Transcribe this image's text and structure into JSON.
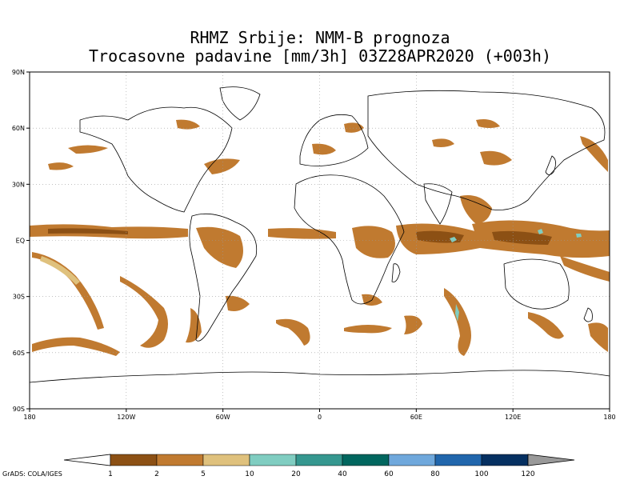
{
  "title": {
    "line1": "RHMZ Srbije: NMM-B prognoza",
    "line2": "Trocasovne padavine [mm/3h] 03Z28APR2020 (+003h)"
  },
  "axes": {
    "lat_labels": [
      "90N",
      "60N",
      "30N",
      "EQ",
      "30S",
      "60S",
      "90S"
    ],
    "lon_labels": [
      "180",
      "120W",
      "60W",
      "0",
      "60E",
      "120E",
      "180"
    ],
    "lat_range": [
      -90,
      90
    ],
    "lon_range": [
      -180,
      180
    ],
    "grid": "dotted"
  },
  "colorbar": {
    "thresholds": [
      "1",
      "2",
      "5",
      "10",
      "20",
      "40",
      "60",
      "80",
      "100",
      "120"
    ],
    "colors": [
      "#8c5014",
      "#c07a30",
      "#dfc17d",
      "#80cdc1",
      "#35978f",
      "#01665e",
      "#6fa8dc",
      "#2166ac",
      "#053061",
      "#999999"
    ],
    "low_color": "#ffffff"
  },
  "credit": "GrADS: COLA/IGES",
  "colors": {
    "land_outline": "#000000",
    "precip_light": "#c07a30",
    "precip_dark": "#8c5014",
    "precip_pale": "#dfc17d",
    "precip_heavy": "#80cdc1"
  }
}
